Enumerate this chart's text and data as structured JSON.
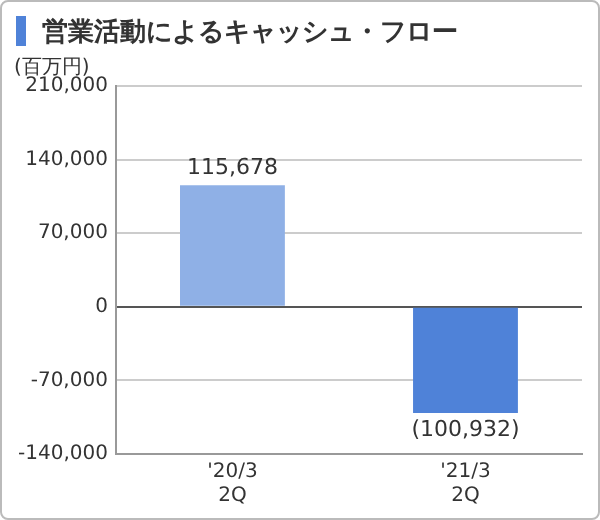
{
  "chart_data": {
    "type": "bar",
    "title": "営業活動によるキャッシュ・フロー",
    "ylabel": "(百万円)",
    "categories": [
      "'20/3\n2Q",
      "'21/3\n2Q"
    ],
    "values": [
      115678,
      -100932
    ],
    "colors": [
      "#8fb0e6",
      "#4f82d8"
    ],
    "value_labels": [
      "115,678",
      "(100,932)"
    ],
    "ylim": [
      -140000,
      210000
    ],
    "yticks": [
      {
        "value": 210000,
        "label": "210,000"
      },
      {
        "value": 140000,
        "label": "140,000"
      },
      {
        "value": 70000,
        "label": "70,000"
      },
      0,
      {
        "value": -70000,
        "label": "-70,000"
      },
      {
        "value": -140000,
        "label": "-140,000"
      }
    ],
    "grid": "y"
  }
}
